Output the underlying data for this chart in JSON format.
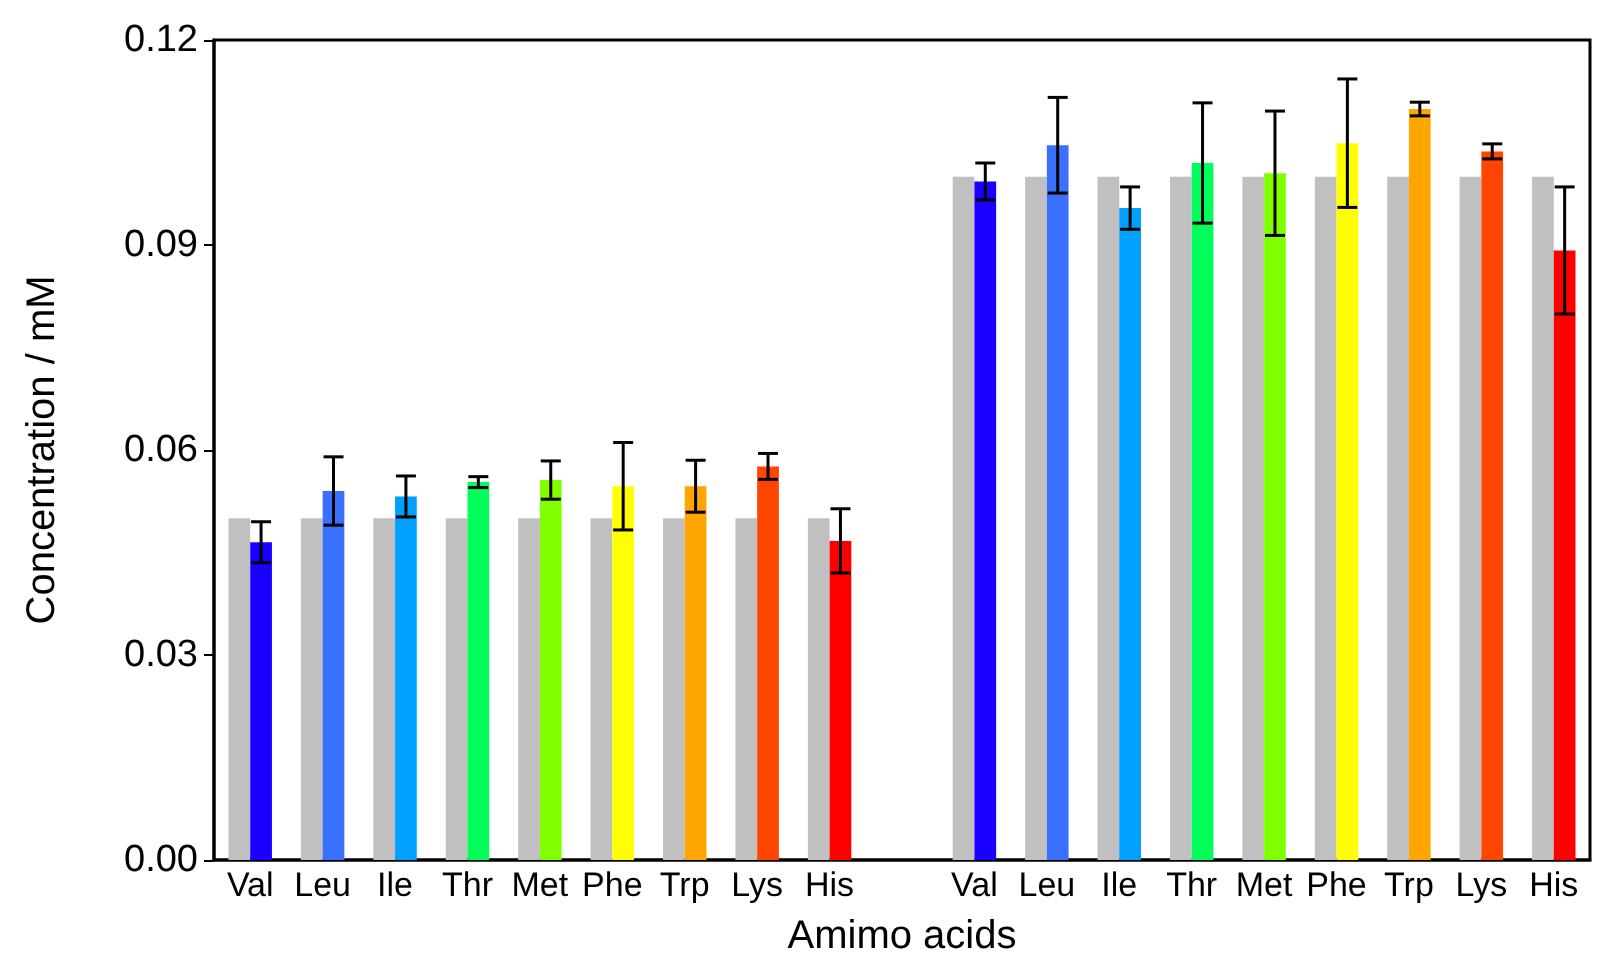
{
  "chart_data": {
    "type": "bar",
    "xlabel": "Amimo acids",
    "ylabel": "Concentration / mM",
    "categories": [
      "Val",
      "Leu",
      "Ile",
      "Thr",
      "Met",
      "Phe",
      "Trp",
      "Lys",
      "His",
      null,
      "Val",
      "Leu",
      "Ile",
      "Thr",
      "Met",
      "Phe",
      "Trp",
      "Lys",
      "His"
    ],
    "series": [
      {
        "color": "#c0c0c0",
        "values": [
          0.05,
          0.05,
          0.05,
          0.05,
          0.05,
          0.05,
          0.05,
          0.05,
          0.05,
          null,
          0.1,
          0.1,
          0.1,
          0.1,
          0.1,
          0.1,
          0.1,
          0.1,
          0.1
        ]
      },
      {
        "colors": [
          "#1a00ff",
          "#3a70ff",
          "#00a0ff",
          "#00ff5a",
          "#80ff00",
          "#ffff00",
          "#ffa500",
          "#ff4500",
          "#ff0000",
          null,
          "#1a00ff",
          "#3a70ff",
          "#00a0ff",
          "#00ff5a",
          "#80ff00",
          "#ffff00",
          "#ffa500",
          "#ff4500",
          "#ff0000"
        ],
        "values": [
          0.0465,
          0.054,
          0.0532,
          0.0553,
          0.0556,
          0.0547,
          0.0547,
          0.0576,
          0.0467,
          null,
          0.0993,
          0.1046,
          0.0954,
          0.102,
          0.1005,
          0.1049,
          0.1099,
          0.1037,
          0.0892
        ],
        "errors": [
          0.003,
          0.005,
          0.003,
          0.0008,
          0.0028,
          0.0064,
          0.0038,
          0.0019,
          0.0047,
          null,
          0.0027,
          0.007,
          0.0031,
          0.0088,
          0.0091,
          0.0094,
          0.001,
          0.0011,
          0.0093
        ]
      }
    ],
    "ylim": [
      0,
      0.12
    ],
    "yticks": [
      {
        "value": 0,
        "label": "0.00"
      },
      {
        "value": 0.03,
        "label": "0.03"
      },
      {
        "value": 0.06,
        "label": "0.06"
      },
      {
        "value": 0.09,
        "label": "0.09"
      },
      {
        "value": 0.12,
        "label": "0.12"
      }
    ],
    "grid": false
  }
}
